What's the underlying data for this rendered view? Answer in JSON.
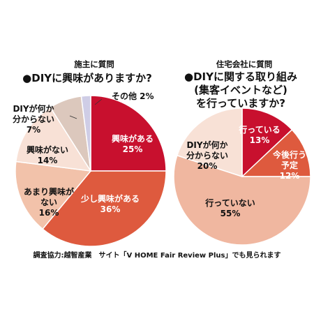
{
  "chart_data": [
    {
      "type": "pie",
      "header": "施主に質問",
      "title": "●DIYに興味がありますか?",
      "start_angle_deg": 0,
      "slices": [
        {
          "label": "興味がある",
          "value": 25,
          "value_text": "25%",
          "color": "#c8102e",
          "text_color": "#ffffff"
        },
        {
          "label": "少し興味がある",
          "value": 36,
          "value_text": "36%",
          "color": "#de5a3e",
          "text_color": "#ffffff"
        },
        {
          "label": "あまり興味が\nない",
          "value": 16,
          "value_text": "16%",
          "color": "#f2c2aa",
          "text_color": "#111111"
        },
        {
          "label": "興味がない",
          "value": 14,
          "value_text": "14%",
          "color": "#f8e1d6",
          "text_color": "#111111"
        },
        {
          "label": "DIYが何か\n分からない",
          "value": 7,
          "value_text": "7%",
          "color": "#dcc8bd",
          "text_color": "#111111"
        },
        {
          "label": "その他",
          "value": 2,
          "value_text": "2%",
          "color": "#cfcde6",
          "text_color": "#111111"
        }
      ]
    },
    {
      "type": "pie",
      "header": "住宅会社に質問",
      "title": "●DIYに関する取り組み\n(集客イベントなど)\nを行っていますか?",
      "start_angle_deg": 0,
      "slices": [
        {
          "label": "行っている",
          "value": 13,
          "value_text": "13%",
          "color": "#c8102e",
          "text_color": "#ffffff"
        },
        {
          "label": "今後行う\n予定",
          "value": 12,
          "value_text": "12%",
          "color": "#de5a3e",
          "text_color": "#ffffff"
        },
        {
          "label": "行っていない",
          "value": 55,
          "value_text": "55%",
          "color": "#f0b7a0",
          "text_color": "#111111"
        },
        {
          "label": "DIYが何か\n分からない",
          "value": 20,
          "value_text": "20%",
          "color": "#f8e1d6",
          "text_color": "#111111"
        }
      ]
    }
  ],
  "footer": "調査協力:越智産業　サイト「V HOME Fair Review Plus」でも見られます"
}
